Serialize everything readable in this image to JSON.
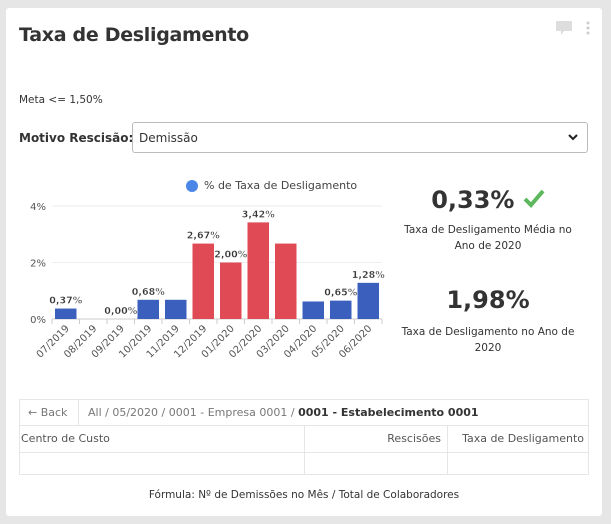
{
  "header": {
    "title": "Taxa de Desligamento"
  },
  "meta": "Meta <= 1,50%",
  "filter": {
    "label": "Motivo Rescisão:",
    "value": "Demissão"
  },
  "stats": [
    {
      "value": "0,33%",
      "label": "Taxa de Desligamento Média no Ano de 2020",
      "status_icon": "check-icon",
      "status_color": "#5cb85c"
    },
    {
      "value": "1,98%",
      "label": "Taxa de Desligamento no Ano de 2020"
    }
  ],
  "chart_data": {
    "type": "bar",
    "legend": "% de Taxa de Desligamento",
    "legend_color": "#4a86e8",
    "categories": [
      "07/2019",
      "08/2019",
      "09/2019",
      "10/2019",
      "11/2019",
      "12/2019",
      "01/2020",
      "02/2020",
      "03/2020",
      "04/2020",
      "05/2020",
      "06/2020"
    ],
    "values": [
      0.37,
      0,
      0,
      0.68,
      0.68,
      2.67,
      2.0,
      3.42,
      2.67,
      0.62,
      0.65,
      1.28
    ],
    "data_labels": [
      "0,37%",
      "",
      "0,00%",
      "0,68%",
      "",
      "2,67%",
      "2,00%",
      "3,42%",
      "",
      "",
      "0,65%",
      "1,28%"
    ],
    "colors": [
      "#3a5fbd",
      "#3a5fbd",
      "#3a5fbd",
      "#3a5fbd",
      "#3a5fbd",
      "#e04a55",
      "#e04a55",
      "#e04a55",
      "#e04a55",
      "#3a5fbd",
      "#3a5fbd",
      "#3a5fbd"
    ],
    "yticks": [
      "0%",
      "2%",
      "4%"
    ],
    "ylim": [
      0,
      4
    ],
    "grid": true
  },
  "table": {
    "back": "← Back",
    "breadcrumb": [
      "All",
      "05/2020",
      "0001 - Empresa 0001"
    ],
    "breadcrumb_current": "0001 - Estabelecimento 0001",
    "columns": [
      "Centro de Custo",
      "Rescisões",
      "Taxa de Desligamento"
    ]
  },
  "formula": "Fórmula: Nº de Demissões no Mês / Total de Colaboradores"
}
